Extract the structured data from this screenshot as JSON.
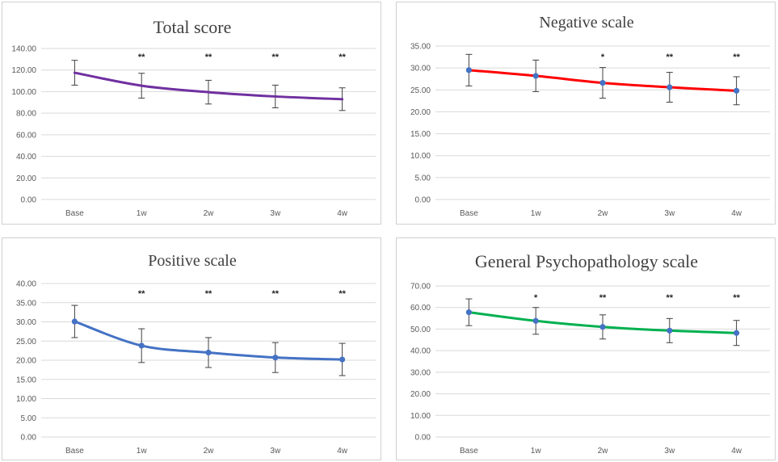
{
  "chart_data": [
    {
      "type": "line",
      "title": "Total score",
      "categories": [
        "Base",
        "1w",
        "2w",
        "3w",
        "4w"
      ],
      "series": [
        {
          "values": [
            117.5,
            105.5,
            99.5,
            95.5,
            93.0
          ],
          "error": [
            11.5,
            11.5,
            11.0,
            10.5,
            10.5
          ],
          "color": "#7030a0",
          "markers": false
        }
      ],
      "significance": [
        "",
        "**",
        "**",
        "**",
        "**"
      ],
      "ylim": [
        0,
        140
      ],
      "yticks": [
        "0.00",
        "20.00",
        "40.00",
        "60.00",
        "80.00",
        "100.00",
        "120.00",
        "140.00"
      ],
      "grid": true,
      "xlabel": "",
      "ylabel": ""
    },
    {
      "type": "line",
      "title": "Negative scale",
      "categories": [
        "Base",
        "1w",
        "2w",
        "3w",
        "4w"
      ],
      "series": [
        {
          "values": [
            29.5,
            28.2,
            26.6,
            25.6,
            24.8
          ],
          "error": [
            3.6,
            3.6,
            3.5,
            3.4,
            3.2
          ],
          "color": "#ff0000",
          "markers": true
        }
      ],
      "significance": [
        "",
        "",
        "*",
        "**",
        "**"
      ],
      "ylim": [
        0,
        35
      ],
      "yticks": [
        "0.00",
        "5.00",
        "10.00",
        "15.00",
        "20.00",
        "25.00",
        "30.00",
        "35.00"
      ],
      "grid": true,
      "xlabel": "",
      "ylabel": ""
    },
    {
      "type": "line",
      "title": "Positive  scale",
      "categories": [
        "Base",
        "1w",
        "2w",
        "3w",
        "4w"
      ],
      "series": [
        {
          "values": [
            30.1,
            23.8,
            22.0,
            20.7,
            20.2
          ],
          "error": [
            4.2,
            4.4,
            3.9,
            3.9,
            4.2
          ],
          "color": "#4472c4",
          "markers": true
        }
      ],
      "significance": [
        "",
        "**",
        "**",
        "**",
        "**"
      ],
      "ylim": [
        0,
        40
      ],
      "yticks": [
        "0.00",
        "5.00",
        "10.00",
        "15.00",
        "20.00",
        "25.00",
        "30.00",
        "35.00",
        "40.00"
      ],
      "grid": true,
      "xlabel": "",
      "ylabel": ""
    },
    {
      "type": "line",
      "title": "General Psychopathology scale",
      "categories": [
        "Base",
        "1w",
        "2w",
        "3w",
        "4w"
      ],
      "series": [
        {
          "values": [
            57.8,
            53.8,
            51.0,
            49.3,
            48.2
          ],
          "error": [
            6.2,
            6.2,
            5.6,
            5.6,
            5.8
          ],
          "color": "#00b050",
          "markers": true
        }
      ],
      "significance": [
        "",
        "*",
        "**",
        "**",
        "**"
      ],
      "ylim": [
        0,
        70
      ],
      "yticks": [
        "0.00",
        "10.00",
        "20.00",
        "30.00",
        "40.00",
        "50.00",
        "60.00",
        "70.00"
      ],
      "grid": true,
      "xlabel": "",
      "ylabel": ""
    }
  ],
  "marker_color": "#4472c4",
  "errorbar_color": "#404040"
}
